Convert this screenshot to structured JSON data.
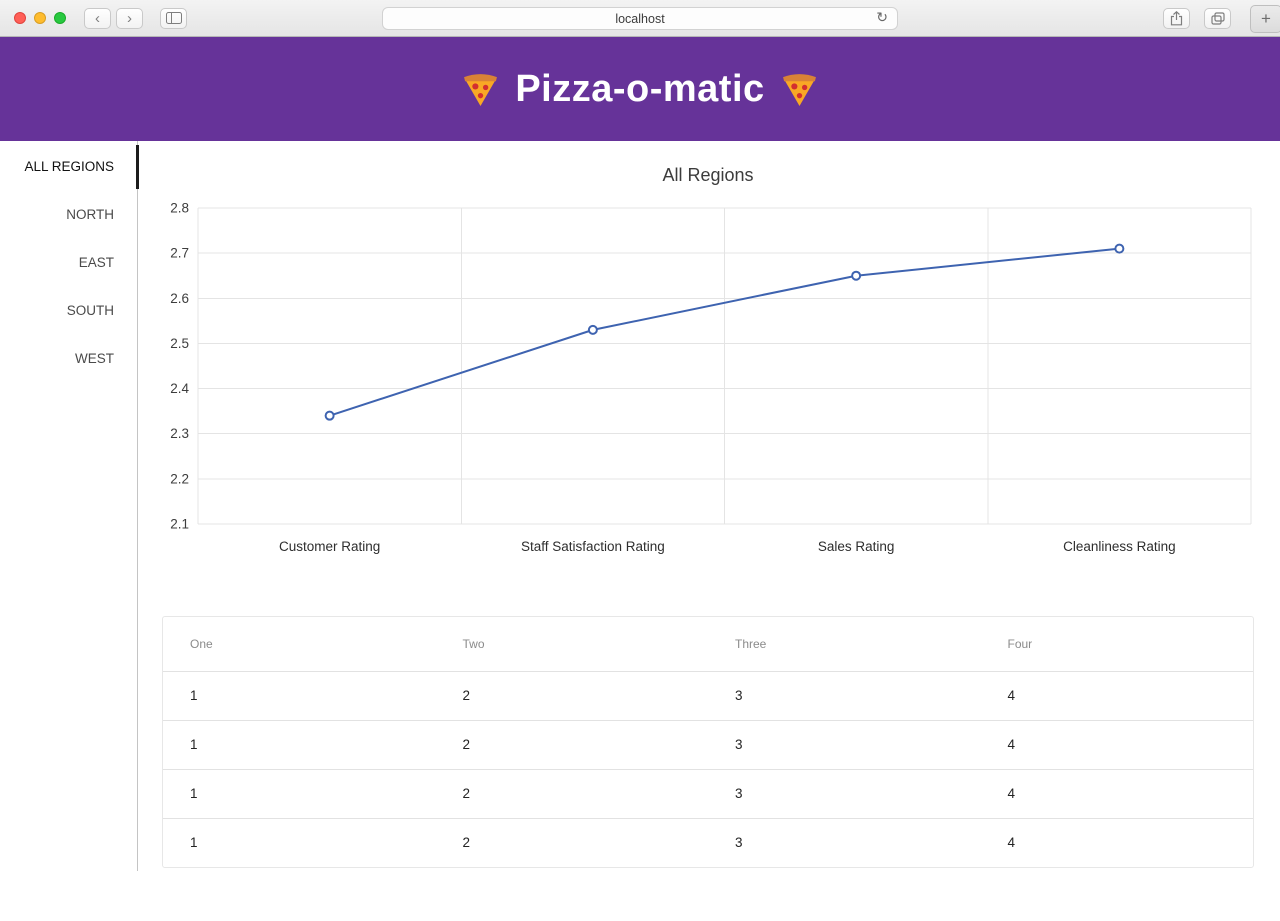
{
  "browser": {
    "url": "localhost",
    "reload_icon": "↻",
    "back_icon": "‹",
    "forward_icon": "›",
    "new_tab_label": "+"
  },
  "header": {
    "title": "Pizza-o-matic",
    "pizza_emoji": "🍕"
  },
  "sidebar": {
    "items": [
      {
        "label": "ALL REGIONS",
        "active": true
      },
      {
        "label": "NORTH",
        "active": false
      },
      {
        "label": "EAST",
        "active": false
      },
      {
        "label": "SOUTH",
        "active": false
      },
      {
        "label": "WEST",
        "active": false
      }
    ]
  },
  "chart_data": {
    "type": "line",
    "title": "All Regions",
    "categories": [
      "Customer Rating",
      "Staff Satisfaction Rating",
      "Sales Rating",
      "Cleanliness Rating"
    ],
    "values": [
      2.34,
      2.53,
      2.65,
      2.71
    ],
    "ylim": [
      2.1,
      2.8
    ],
    "ytick_step": 0.1,
    "ytick_labels": [
      "2.1",
      "2.2",
      "2.3",
      "2.4",
      "2.5",
      "2.6",
      "2.7",
      "2.8"
    ],
    "xlabel": "",
    "ylabel": "",
    "grid": true,
    "legend": false,
    "line_color": "#3e63b0",
    "marker": "open-circle"
  },
  "table": {
    "headers": [
      "One",
      "Two",
      "Three",
      "Four"
    ],
    "rows": [
      [
        "1",
        "2",
        "3",
        "4"
      ],
      [
        "1",
        "2",
        "3",
        "4"
      ],
      [
        "1",
        "2",
        "3",
        "4"
      ],
      [
        "1",
        "2",
        "3",
        "4"
      ]
    ]
  },
  "colors": {
    "header_bg": "#663399",
    "chart_line": "#3e63b0",
    "gridline": "#e4e4e4",
    "sidebar_active_text": "#111111",
    "sidebar_text": "#4a4a4a"
  }
}
